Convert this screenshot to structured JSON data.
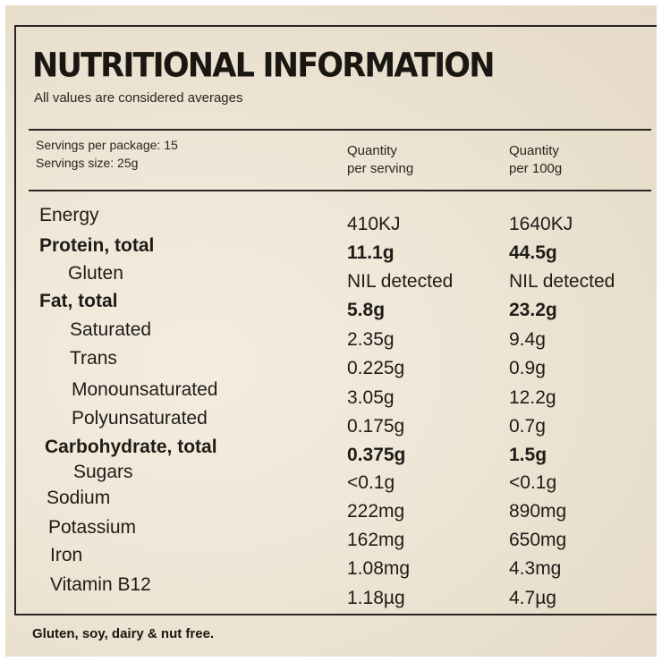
{
  "title": "NUTRITIONAL INFORMATION",
  "subtitle": "All values are considered averages",
  "servings_per_package": "Servings per package: 15",
  "serving_size": "Servings size: 25g",
  "columns": {
    "per_serving_line1": "Quantity",
    "per_serving_line2": "per serving",
    "per_100g_line1": "Quantity",
    "per_100g_line2": "per 100g"
  },
  "rows": [
    {
      "label": "Energy",
      "per_serving": "410KJ",
      "per_100g": "1640KJ",
      "bold": false
    },
    {
      "label": "Protein, total",
      "per_serving": "11.1g",
      "per_100g": "44.5g",
      "bold": true
    },
    {
      "label": "Gluten",
      "per_serving": "NIL detected",
      "per_100g": "NIL detected",
      "bold": false
    },
    {
      "label": "Fat, total",
      "per_serving": "5.8g",
      "per_100g": "23.2g",
      "bold": true
    },
    {
      "label": "Saturated",
      "per_serving": "2.35g",
      "per_100g": "9.4g",
      "bold": false
    },
    {
      "label": "Trans",
      "per_serving": "0.225g",
      "per_100g": "0.9g",
      "bold": false
    },
    {
      "label": "Monounsaturated",
      "per_serving": "3.05g",
      "per_100g": "12.2g",
      "bold": false
    },
    {
      "label": "Polyunsaturated",
      "per_serving": "0.175g",
      "per_100g": "0.7g",
      "bold": false
    },
    {
      "label": "Carbohydrate, total",
      "per_serving": "0.375g",
      "per_100g": "1.5g",
      "bold": true
    },
    {
      "label": "Sugars",
      "per_serving": "<0.1g",
      "per_100g": "<0.1g",
      "bold": false
    },
    {
      "label": "Sodium",
      "per_serving": "222mg",
      "per_100g": "890mg",
      "bold": false
    },
    {
      "label": "Potassium",
      "per_serving": "162mg",
      "per_100g": "650mg",
      "bold": false
    },
    {
      "label": "Iron",
      "per_serving": "1.08mg",
      "per_100g": "4.3mg",
      "bold": false
    },
    {
      "label": "Vitamin B12",
      "per_serving": "1.18µg",
      "per_100g": "4.7µg",
      "bold": false
    }
  ],
  "footer": "Gluten, soy, dairy & nut free."
}
